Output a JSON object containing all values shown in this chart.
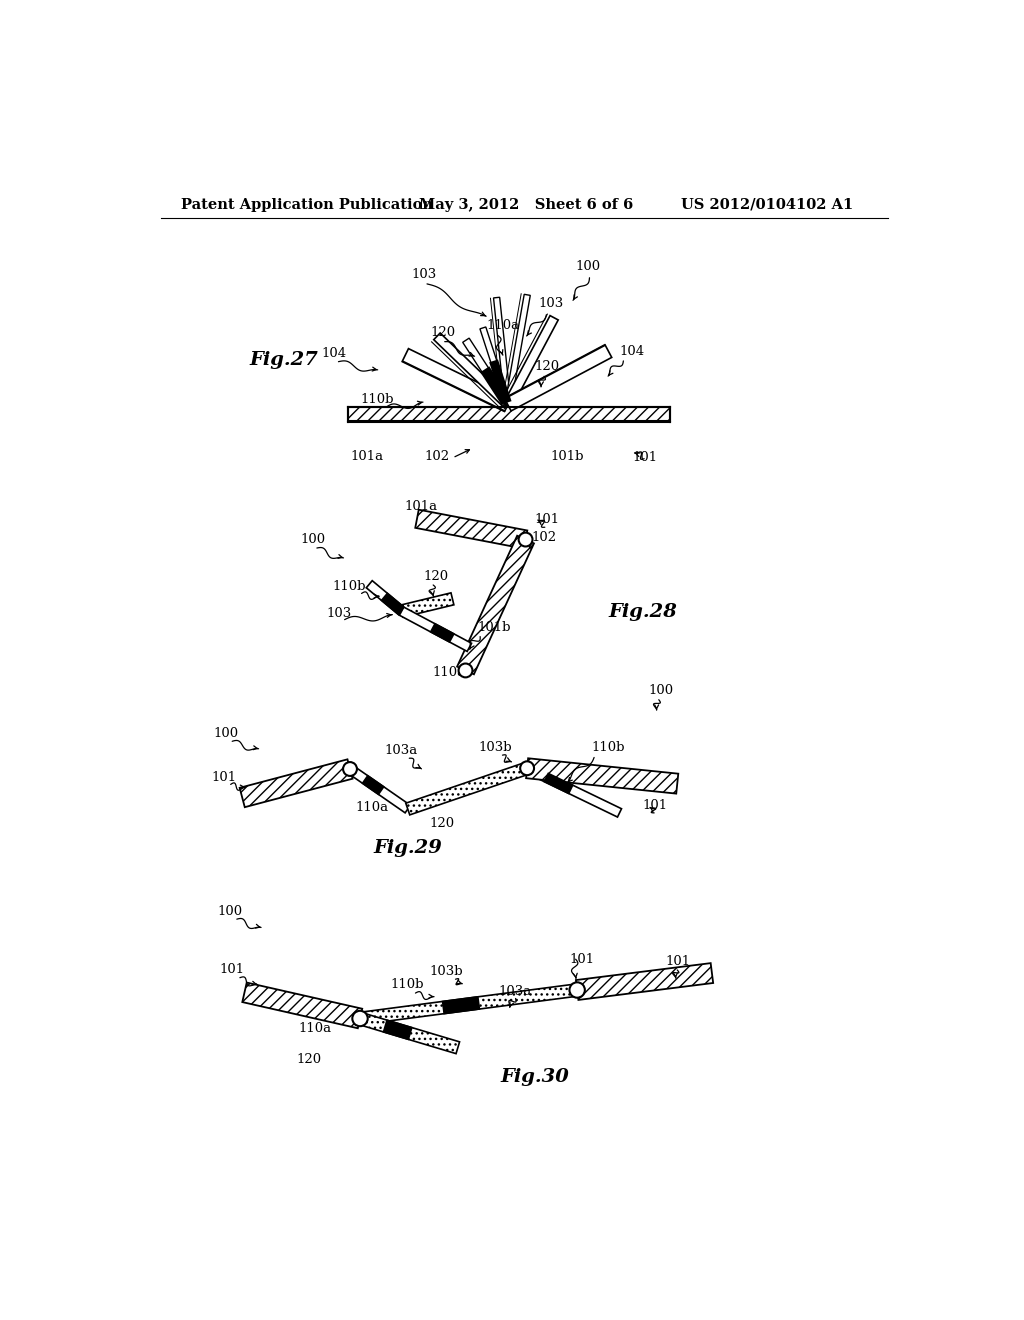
{
  "bg_color": "#ffffff",
  "header_left": "Patent Application Publication",
  "header_mid": "May 3, 2012   Sheet 6 of 6",
  "header_right": "US 2012/0104102 A1",
  "fig27_label": "Fig.27",
  "fig28_label": "Fig.28",
  "fig29_label": "Fig.29",
  "fig30_label": "Fig.30"
}
